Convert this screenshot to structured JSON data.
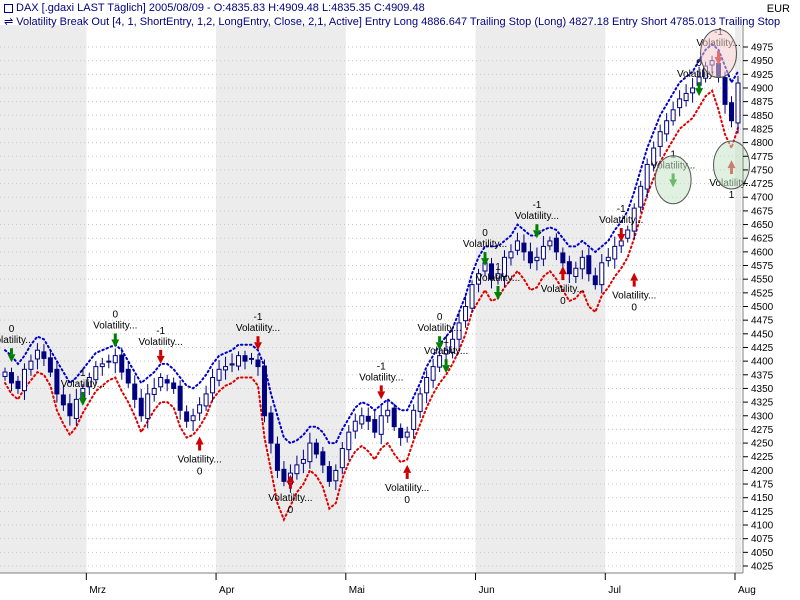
{
  "header": {
    "title": "DAX [.gdaxi LAST Täglich] 2005/08/09 - O:4835.83 H:4909.48 L:4835.35 C:4909.48",
    "indicator": "Volatility Break Out [4, 1, ShortEntry, 1,2, LongEntry, Close, 2,1, Active] Entry Long 4886.647 Trailing Stop (Long) 4827.18 Entry Short 4785.013 Trailing Stop",
    "currency": "EUR"
  },
  "colors": {
    "background": "#ffffff",
    "band": "#ececec",
    "candle": "#000080",
    "upper_band": "#0000cc",
    "lower_band": "#e00000",
    "long_marker": "#008000",
    "short_marker": "#cc0000",
    "circle_green": "#c8e6c8",
    "circle_red": "#f3caca"
  },
  "icons": {
    "long_entry": "green-down-arrow-icon",
    "short_entry": "red-down-arrow-icon",
    "stop": "red-up-arrow-icon",
    "legend": "double-arrow-icon"
  },
  "chart_data": {
    "type": "candlestick",
    "title": "DAX [.gdaxi LAST Täglich]",
    "ylim": [
      4000,
      5000
    ],
    "y_ticks": [
      4025,
      4050,
      4075,
      4100,
      4125,
      4150,
      4175,
      4200,
      4225,
      4250,
      4275,
      4300,
      4325,
      4350,
      4375,
      4400,
      4425,
      4450,
      4475,
      4500,
      4525,
      4550,
      4575,
      4600,
      4625,
      4650,
      4675,
      4700,
      4725,
      4750,
      4775,
      4800,
      4825,
      4850,
      4875,
      4900,
      4925,
      4950,
      4975
    ],
    "x_labels": [
      "Mrz",
      "Apr",
      "Mai",
      "Jun",
      "Jul",
      "Aug"
    ],
    "trading_days": 114,
    "month_starts": [
      13,
      33,
      53,
      73,
      93,
      113
    ],
    "close": [
      4380,
      4360,
      4350,
      4385,
      4400,
      4420,
      4405,
      4380,
      4340,
      4320,
      4300,
      4330,
      4350,
      4370,
      4390,
      4395,
      4400,
      4410,
      4380,
      4360,
      4330,
      4300,
      4340,
      4350,
      4370,
      4360,
      4350,
      4310,
      4290,
      4300,
      4320,
      4340,
      4370,
      4385,
      4390,
      4395,
      4410,
      4400,
      4405,
      4390,
      4300,
      4250,
      4200,
      4180,
      4195,
      4210,
      4220,
      4250,
      4230,
      4210,
      4180,
      4200,
      4240,
      4270,
      4290,
      4300,
      4290,
      4270,
      4300,
      4310,
      4280,
      4260,
      4270,
      4310,
      4340,
      4370,
      4390,
      4410,
      4420,
      4440,
      4470,
      4500,
      4540,
      4560,
      4580,
      4550,
      4560,
      4590,
      4600,
      4620,
      4600,
      4580,
      4590,
      4610,
      4620,
      4600,
      4580,
      4560,
      4570,
      4590,
      4560,
      4540,
      4580,
      4590,
      4610,
      4620,
      4640,
      4680,
      4720,
      4760,
      4790,
      4820,
      4840,
      4860,
      4880,
      4890,
      4900,
      4920,
      4940,
      4950,
      4920,
      4870,
      4840,
      4909
    ],
    "upper_band": [
      4420,
      4410,
      4395,
      4410,
      4430,
      4445,
      4440,
      4420,
      4400,
      4380,
      4360,
      4370,
      4385,
      4400,
      4415,
      4420,
      4425,
      4430,
      4420,
      4400,
      4380,
      4360,
      4370,
      4380,
      4395,
      4395,
      4385,
      4370,
      4355,
      4350,
      4360,
      4375,
      4395,
      4410,
      4415,
      4420,
      4430,
      4430,
      4430,
      4420,
      4390,
      4340,
      4300,
      4260,
      4250,
      4255,
      4265,
      4280,
      4280,
      4270,
      4250,
      4250,
      4275,
      4295,
      4315,
      4325,
      4320,
      4310,
      4320,
      4330,
      4320,
      4310,
      4310,
      4335,
      4360,
      4390,
      4410,
      4430,
      4445,
      4460,
      4490,
      4520,
      4560,
      4590,
      4610,
      4610,
      4610,
      4620,
      4630,
      4650,
      4640,
      4630,
      4630,
      4640,
      4645,
      4640,
      4625,
      4610,
      4610,
      4620,
      4610,
      4600,
      4610,
      4620,
      4640,
      4655,
      4675,
      4710,
      4750,
      4790,
      4820,
      4850,
      4870,
      4890,
      4910,
      4920,
      4930,
      4950,
      4970,
      4980,
      4970,
      4940,
      4910,
      4930
    ],
    "lower_band": [
      4360,
      4340,
      4330,
      4350,
      4365,
      4380,
      4375,
      4355,
      4310,
      4285,
      4265,
      4280,
      4305,
      4325,
      4345,
      4355,
      4365,
      4370,
      4345,
      4325,
      4300,
      4270,
      4290,
      4310,
      4325,
      4325,
      4315,
      4280,
      4260,
      4265,
      4280,
      4300,
      4330,
      4345,
      4355,
      4360,
      4370,
      4370,
      4370,
      4355,
      4260,
      4200,
      4140,
      4110,
      4135,
      4160,
      4175,
      4200,
      4190,
      4170,
      4130,
      4140,
      4185,
      4215,
      4235,
      4245,
      4235,
      4220,
      4240,
      4250,
      4230,
      4215,
      4220,
      4255,
      4285,
      4315,
      4340,
      4360,
      4375,
      4395,
      4420,
      4450,
      4490,
      4510,
      4530,
      4510,
      4515,
      4535,
      4550,
      4565,
      4550,
      4530,
      4535,
      4555,
      4565,
      4550,
      4530,
      4510,
      4515,
      4530,
      4500,
      4490,
      4520,
      4535,
      4555,
      4570,
      4590,
      4625,
      4665,
      4705,
      4735,
      4765,
      4785,
      4805,
      4825,
      4835,
      4845,
      4865,
      4885,
      4895,
      4860,
      4815,
      4790,
      4827
    ],
    "signals": [
      {
        "i": 1,
        "type": "long",
        "label": "Volatility...",
        "num": "0",
        "price": 4398
      },
      {
        "i": 12,
        "type": "long",
        "label": "Volatility...",
        "num": "1",
        "price": 4318
      },
      {
        "i": 17,
        "type": "long",
        "label": "Volatility...",
        "num": "0",
        "price": 4425
      },
      {
        "i": 24,
        "type": "short",
        "label": "Volatility...",
        "num": "-1",
        "price": 4395
      },
      {
        "i": 30,
        "type": "stop",
        "label": "Volatility...",
        "num": "0",
        "price": 4262
      },
      {
        "i": 39,
        "type": "short",
        "label": "Volatility...",
        "num": "-1",
        "price": 4420
      },
      {
        "i": 44,
        "type": "stop",
        "label": "Volatility...",
        "num": "0",
        "price": 4192
      },
      {
        "i": 58,
        "type": "short",
        "label": "Volatility...",
        "num": "-1",
        "price": 4330
      },
      {
        "i": 62,
        "type": "stop",
        "label": "Volatility...",
        "num": "0",
        "price": 4210
      },
      {
        "i": 67,
        "type": "long",
        "label": "Volatility...",
        "num": "0",
        "price": 4420
      },
      {
        "i": 68,
        "type": "long",
        "label": "Volatility...",
        "num": "1",
        "price": 4378
      },
      {
        "i": 74,
        "type": "long",
        "label": "Volatility...",
        "num": "0",
        "price": 4574
      },
      {
        "i": 76,
        "type": "long",
        "label": "Volatility...",
        "num": "1",
        "price": 4512
      },
      {
        "i": 82,
        "type": "long",
        "label": "Volatility...",
        "num": "-1",
        "price": 4625
      },
      {
        "i": 86,
        "type": "stop",
        "label": "Volatility...",
        "num": "0",
        "price": 4574
      },
      {
        "i": 95,
        "type": "short",
        "label": "Volatility...",
        "num": "-1",
        "price": 4618
      },
      {
        "i": 97,
        "type": "stop",
        "label": "Volatility...",
        "num": "0",
        "price": 4562
      },
      {
        "i": 103,
        "type": "long",
        "label": "Volatility...",
        "num": "1",
        "price": 4718
      },
      {
        "i": 107,
        "type": "long",
        "label": "Volatility...",
        "num": "0",
        "price": 4885
      },
      {
        "i": 110,
        "type": "short",
        "label": "Volatility...",
        "num": "-1",
        "price": 4942
      },
      {
        "i": 112,
        "type": "stop",
        "label": "Volatility...",
        "num": "1",
        "price": 4768
      }
    ],
    "highlight_circles": [
      {
        "i": 103,
        "price": 4732,
        "color": "green"
      },
      {
        "i": 110,
        "price": 4963,
        "color": "red"
      },
      {
        "i": 112,
        "price": 4759,
        "color": "green"
      }
    ]
  }
}
